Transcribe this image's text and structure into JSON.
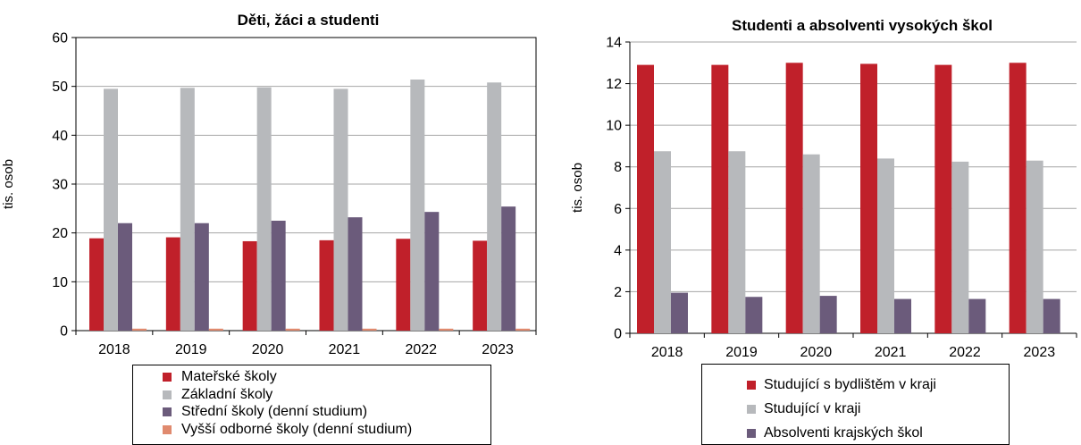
{
  "colors": {
    "red": "#c0202a",
    "lightgray": "#b7b9bc",
    "purple": "#6b5b7b",
    "salmon": "#e08a6e",
    "gridline": "#a6a6a6"
  },
  "chart_data": [
    {
      "type": "bar",
      "title": "Děti, žáci a studenti",
      "xlabel": "",
      "ylabel": "tis. osob",
      "ylim": [
        0,
        60
      ],
      "yticks": [
        "0",
        "10",
        "20",
        "30",
        "40",
        "50",
        "60"
      ],
      "categories": [
        "2018",
        "2019",
        "2020",
        "2021",
        "2022",
        "2023"
      ],
      "grid": true,
      "legend_position": "bottom",
      "series": [
        {
          "name": "Mateřské školy",
          "color": "#c0202a",
          "values": [
            18.9,
            19.1,
            18.3,
            18.5,
            18.8,
            18.4
          ]
        },
        {
          "name": "Základní školy",
          "color": "#b7b9bc",
          "values": [
            49.5,
            49.7,
            49.8,
            49.5,
            51.4,
            50.8
          ]
        },
        {
          "name": "Střední školy (denní studium)",
          "color": "#6b5b7b",
          "values": [
            22.0,
            22.0,
            22.5,
            23.2,
            24.3,
            25.4
          ]
        },
        {
          "name": "Vyšší odborné školy (denní studium)",
          "color": "#e08a6e",
          "values": [
            0.4,
            0.4,
            0.4,
            0.4,
            0.4,
            0.4
          ]
        }
      ]
    },
    {
      "type": "bar",
      "title": "Studenti a absolventi vysokých škol",
      "xlabel": "",
      "ylabel": "tis. osob",
      "ylim": [
        0,
        14
      ],
      "yticks": [
        "0",
        "2",
        "4",
        "6",
        "8",
        "10",
        "12",
        "14"
      ],
      "categories": [
        "2018",
        "2019",
        "2020",
        "2021",
        "2022",
        "2023"
      ],
      "grid": true,
      "legend_position": "bottom",
      "series": [
        {
          "name": "Studující s bydlištěm v kraji",
          "color": "#c0202a",
          "values": [
            12.9,
            12.9,
            13.0,
            12.95,
            12.9,
            13.0
          ]
        },
        {
          "name": "Studující v kraji",
          "color": "#b7b9bc",
          "values": [
            8.75,
            8.75,
            8.6,
            8.4,
            8.25,
            8.3
          ]
        },
        {
          "name": "Absolventi krajských škol",
          "color": "#6b5b7b",
          "values": [
            1.95,
            1.75,
            1.8,
            1.65,
            1.65,
            1.65
          ]
        }
      ]
    }
  ]
}
